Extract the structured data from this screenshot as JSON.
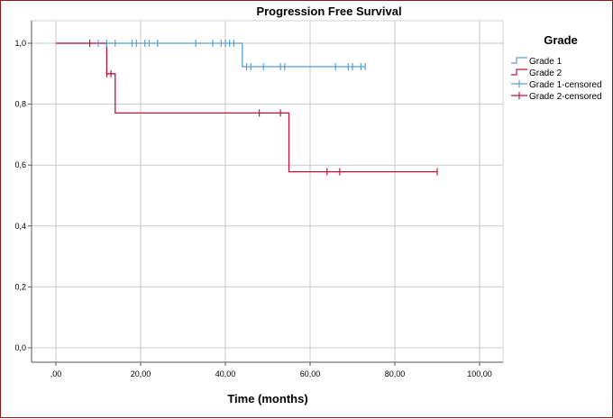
{
  "chart_data": {
    "type": "line",
    "title": "Progression Free Survival",
    "xlabel": "Time (months)",
    "ylabel": "",
    "xlim": [
      0,
      100
    ],
    "ylim": [
      0,
      1
    ],
    "x_ticks": [
      ",00",
      "20,00",
      "40,00",
      "60,00",
      "80,00",
      "100,00"
    ],
    "y_ticks": [
      "0,0",
      "0,2",
      "0,4",
      "0,6",
      "0,8",
      "1,0"
    ],
    "grid": true,
    "legend_title": "Grade",
    "legend_position": "top-right",
    "series": [
      {
        "name": "Grade 1",
        "color": "#5b9bd5",
        "steps": [
          [
            0,
            1.0
          ],
          [
            44,
            0.923
          ],
          [
            73,
            0.923
          ]
        ]
      },
      {
        "name": "Grade 2",
        "color": "#c0143c",
        "steps": [
          [
            0,
            1.0
          ],
          [
            12,
            0.9
          ],
          [
            14,
            0.771
          ],
          [
            55,
            0.578
          ],
          [
            90,
            0.578
          ]
        ]
      }
    ],
    "censored": [
      {
        "name": "Grade 1-censored",
        "color": "#5b9bd5",
        "points": [
          [
            10,
            1.0
          ],
          [
            12,
            1.0
          ],
          [
            14,
            1.0
          ],
          [
            18,
            1.0
          ],
          [
            19,
            1.0
          ],
          [
            21,
            1.0
          ],
          [
            22,
            1.0
          ],
          [
            24,
            1.0
          ],
          [
            33,
            1.0
          ],
          [
            37,
            1.0
          ],
          [
            39,
            1.0
          ],
          [
            40,
            1.0
          ],
          [
            41,
            1.0
          ],
          [
            42,
            1.0
          ],
          [
            45,
            0.923
          ],
          [
            46,
            0.923
          ],
          [
            49,
            0.923
          ],
          [
            53,
            0.923
          ],
          [
            54,
            0.923
          ],
          [
            66,
            0.923
          ],
          [
            69,
            0.923
          ],
          [
            70,
            0.923
          ],
          [
            72,
            0.923
          ],
          [
            73,
            0.923
          ]
        ]
      },
      {
        "name": "Grade 2-censored",
        "color": "#c0143c",
        "points": [
          [
            8,
            1.0
          ],
          [
            12,
            0.9
          ],
          [
            13,
            0.9
          ],
          [
            48,
            0.771
          ],
          [
            53,
            0.771
          ],
          [
            64,
            0.578
          ],
          [
            67,
            0.578
          ],
          [
            90,
            0.578
          ]
        ]
      }
    ]
  }
}
